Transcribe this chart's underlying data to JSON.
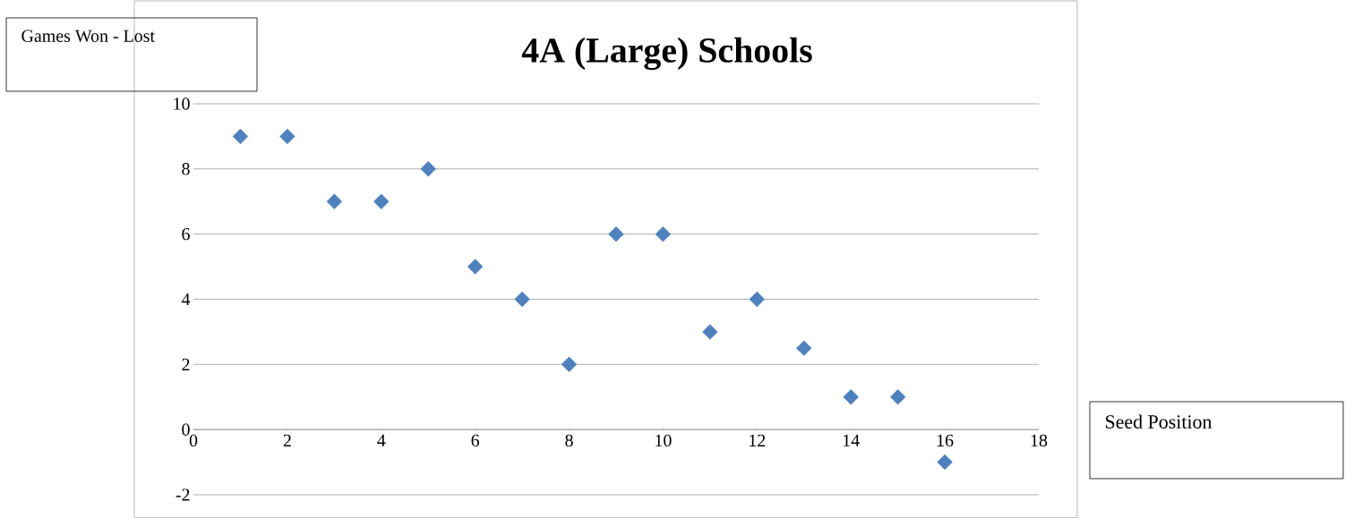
{
  "chart_data": {
    "type": "scatter",
    "title": "4A (Large) Schools",
    "xlabel": "Seed Position",
    "ylabel": "Games Won - Lost",
    "x": [
      1,
      2,
      3,
      4,
      5,
      6,
      7,
      8,
      9,
      10,
      11,
      12,
      13,
      14,
      15,
      16
    ],
    "values": [
      9,
      9,
      7,
      7,
      8,
      5,
      4,
      2,
      6,
      6,
      3,
      4,
      2.5,
      1,
      1,
      -1
    ],
    "color": "#4f81bd",
    "marker": "diamond",
    "grid": "y",
    "xlim": [
      0,
      18
    ],
    "xticks": [
      0,
      2,
      4,
      6,
      8,
      10,
      12,
      14,
      16,
      18
    ],
    "ylim": [
      -2,
      10
    ],
    "yticks": [
      -2,
      0,
      2,
      4,
      6,
      8,
      10
    ]
  }
}
